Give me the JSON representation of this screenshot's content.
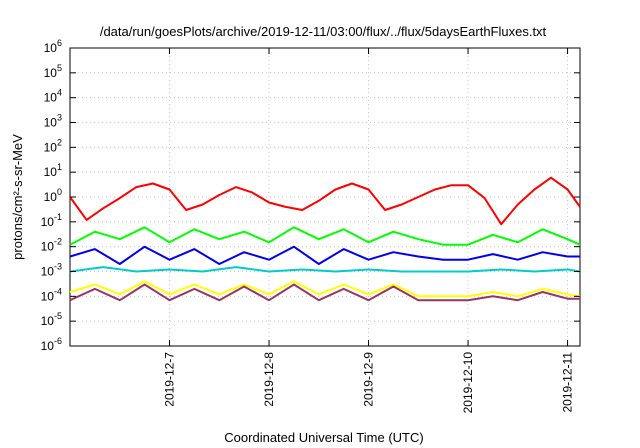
{
  "chart_data": {
    "type": "line",
    "title": "/data/run/goesPlots/archive/2019-12-11/03:00/flux/../flux/5daysEarthFluxes.txt",
    "xlabel": "Coordinated Universal Time (UTC)",
    "ylabel": "protons/cm²-s-sr-MeV",
    "y_scale": "log",
    "ylim": [
      1e-06,
      1000000.0
    ],
    "xlim": [
      "2019-12-06T00:00",
      "2019-12-11T03:00"
    ],
    "x_ticks": [
      "2019-12-7",
      "2019-12-8",
      "2019-12-9",
      "2019-12-10",
      "2019-12-11"
    ],
    "y_ticks": [
      {
        "base": "10",
        "exp": "-6"
      },
      {
        "base": "10",
        "exp": "-5"
      },
      {
        "base": "10",
        "exp": "-4"
      },
      {
        "base": "10",
        "exp": "-3"
      },
      {
        "base": "10",
        "exp": "-2"
      },
      {
        "base": "10",
        "exp": "-1"
      },
      {
        "base": "10",
        "exp": "0"
      },
      {
        "base": "10",
        "exp": "1"
      },
      {
        "base": "10",
        "exp": "2"
      },
      {
        "base": "10",
        "exp": "3"
      },
      {
        "base": "10",
        "exp": "4"
      },
      {
        "base": "10",
        "exp": "5"
      },
      {
        "base": "10",
        "exp": "6"
      }
    ],
    "grid": true,
    "legend": "none",
    "series": [
      {
        "color": "#ff0000",
        "x": [
          "2019-12-06T00:00",
          "2019-12-06T04:00",
          "2019-12-06T08:00",
          "2019-12-06T12:00",
          "2019-12-06T16:00",
          "2019-12-06T20:00",
          "2019-12-07T00:00",
          "2019-12-07T04:00",
          "2019-12-07T08:00",
          "2019-12-07T12:00",
          "2019-12-07T16:00",
          "2019-12-07T20:00",
          "2019-12-08T00:00",
          "2019-12-08T04:00",
          "2019-12-08T08:00",
          "2019-12-08T12:00",
          "2019-12-08T16:00",
          "2019-12-08T20:00",
          "2019-12-09T00:00",
          "2019-12-09T04:00",
          "2019-12-09T08:00",
          "2019-12-09T12:00",
          "2019-12-09T16:00",
          "2019-12-09T20:00",
          "2019-12-10T00:00",
          "2019-12-10T04:00",
          "2019-12-10T08:00",
          "2019-12-10T12:00",
          "2019-12-10T16:00",
          "2019-12-10T20:00",
          "2019-12-11T00:00",
          "2019-12-11T03:00"
        ],
        "y": [
          1.0,
          0.12,
          0.35,
          0.9,
          2.5,
          3.5,
          2.0,
          0.3,
          0.5,
          1.2,
          2.5,
          1.5,
          0.6,
          0.4,
          0.3,
          0.7,
          2.0,
          3.5,
          2.0,
          0.3,
          0.5,
          1.0,
          2.0,
          3.0,
          3.0,
          0.9,
          0.08,
          0.5,
          2.0,
          6.0,
          2.0,
          0.4
        ]
      },
      {
        "color": "#00ff00",
        "x": [
          "2019-12-06T00:00",
          "2019-12-06T06:00",
          "2019-12-06T12:00",
          "2019-12-06T18:00",
          "2019-12-07T00:00",
          "2019-12-07T06:00",
          "2019-12-07T12:00",
          "2019-12-07T18:00",
          "2019-12-08T00:00",
          "2019-12-08T06:00",
          "2019-12-08T12:00",
          "2019-12-08T18:00",
          "2019-12-09T00:00",
          "2019-12-09T06:00",
          "2019-12-09T12:00",
          "2019-12-09T18:00",
          "2019-12-10T00:00",
          "2019-12-10T06:00",
          "2019-12-10T12:00",
          "2019-12-10T18:00",
          "2019-12-11T00:00",
          "2019-12-11T03:00"
        ],
        "y": [
          0.012,
          0.04,
          0.02,
          0.06,
          0.015,
          0.05,
          0.02,
          0.04,
          0.015,
          0.06,
          0.02,
          0.05,
          0.015,
          0.04,
          0.02,
          0.012,
          0.012,
          0.03,
          0.015,
          0.05,
          0.02,
          0.012
        ]
      },
      {
        "color": "#0000ee",
        "x": [
          "2019-12-06T00:00",
          "2019-12-06T06:00",
          "2019-12-06T12:00",
          "2019-12-06T18:00",
          "2019-12-07T00:00",
          "2019-12-07T06:00",
          "2019-12-07T12:00",
          "2019-12-07T18:00",
          "2019-12-08T00:00",
          "2019-12-08T06:00",
          "2019-12-08T12:00",
          "2019-12-08T18:00",
          "2019-12-09T00:00",
          "2019-12-09T06:00",
          "2019-12-09T12:00",
          "2019-12-09T18:00",
          "2019-12-10T00:00",
          "2019-12-10T06:00",
          "2019-12-10T12:00",
          "2019-12-10T18:00",
          "2019-12-11T00:00",
          "2019-12-11T03:00"
        ],
        "y": [
          0.004,
          0.008,
          0.002,
          0.01,
          0.003,
          0.008,
          0.002,
          0.006,
          0.003,
          0.01,
          0.002,
          0.008,
          0.003,
          0.006,
          0.004,
          0.003,
          0.003,
          0.005,
          0.003,
          0.006,
          0.004,
          0.004
        ]
      },
      {
        "color": "#00cccc",
        "x": [
          "2019-12-06T00:00",
          "2019-12-06T08:00",
          "2019-12-06T16:00",
          "2019-12-07T00:00",
          "2019-12-07T08:00",
          "2019-12-07T16:00",
          "2019-12-08T00:00",
          "2019-12-08T08:00",
          "2019-12-08T16:00",
          "2019-12-09T00:00",
          "2019-12-09T08:00",
          "2019-12-09T16:00",
          "2019-12-10T00:00",
          "2019-12-10T08:00",
          "2019-12-10T16:00",
          "2019-12-11T00:00",
          "2019-12-11T03:00"
        ],
        "y": [
          0.001,
          0.0015,
          0.001,
          0.0012,
          0.001,
          0.0015,
          0.001,
          0.0012,
          0.001,
          0.0012,
          0.001,
          0.001,
          0.001,
          0.0012,
          0.001,
          0.0012,
          0.001
        ]
      },
      {
        "color": "#ffff00",
        "x": [
          "2019-12-06T00:00",
          "2019-12-06T06:00",
          "2019-12-06T12:00",
          "2019-12-06T18:00",
          "2019-12-07T00:00",
          "2019-12-07T06:00",
          "2019-12-07T12:00",
          "2019-12-07T18:00",
          "2019-12-08T00:00",
          "2019-12-08T06:00",
          "2019-12-08T12:00",
          "2019-12-08T18:00",
          "2019-12-09T00:00",
          "2019-12-09T06:00",
          "2019-12-09T12:00",
          "2019-12-09T18:00",
          "2019-12-10T00:00",
          "2019-12-10T06:00",
          "2019-12-10T12:00",
          "2019-12-10T18:00",
          "2019-12-11T00:00",
          "2019-12-11T03:00"
        ],
        "y": [
          0.00015,
          0.0003,
          0.00012,
          0.0004,
          0.00012,
          0.0003,
          0.00012,
          0.0003,
          0.00012,
          0.0004,
          0.00012,
          0.0003,
          0.00012,
          0.0003,
          0.0001,
          0.0001,
          0.0001,
          0.00015,
          0.0001,
          0.0002,
          0.00012,
          0.0001
        ]
      },
      {
        "color": "#993366",
        "x": [
          "2019-12-06T00:00",
          "2019-12-06T06:00",
          "2019-12-06T12:00",
          "2019-12-06T18:00",
          "2019-12-07T00:00",
          "2019-12-07T06:00",
          "2019-12-07T12:00",
          "2019-12-07T18:00",
          "2019-12-08T00:00",
          "2019-12-08T06:00",
          "2019-12-08T12:00",
          "2019-12-08T18:00",
          "2019-12-09T00:00",
          "2019-12-09T06:00",
          "2019-12-09T12:00",
          "2019-12-09T18:00",
          "2019-12-10T00:00",
          "2019-12-10T06:00",
          "2019-12-10T12:00",
          "2019-12-10T18:00",
          "2019-12-11T00:00",
          "2019-12-11T03:00"
        ],
        "y": [
          7e-05,
          0.0002,
          7e-05,
          0.0003,
          7e-05,
          0.0002,
          7e-05,
          0.00025,
          7e-05,
          0.0003,
          7e-05,
          0.0002,
          7e-05,
          0.00025,
          7e-05,
          7e-05,
          7e-05,
          0.0001,
          7e-05,
          0.00015,
          8e-05,
          8e-05
        ]
      }
    ]
  }
}
